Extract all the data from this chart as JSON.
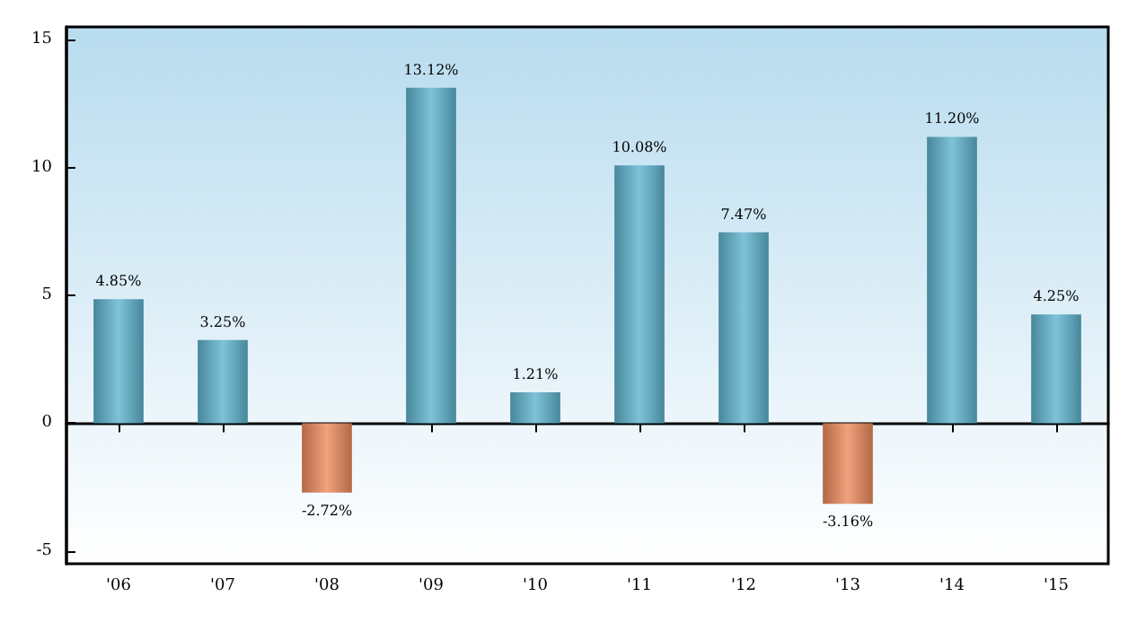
{
  "chart_data": {
    "type": "bar",
    "categories": [
      "'06",
      "'07",
      "'08",
      "'09",
      "'10",
      "'11",
      "'12",
      "'13",
      "'14",
      "'15"
    ],
    "values": [
      4.85,
      3.25,
      -2.72,
      13.12,
      1.21,
      10.08,
      7.47,
      -3.16,
      11.2,
      4.25
    ],
    "value_labels": [
      "4.85%",
      "3.25%",
      "-2.72%",
      "13.12%",
      "1.21%",
      "10.08%",
      "7.47%",
      "-3.16%",
      "11.20%",
      "4.25%"
    ],
    "colors": [
      "#5fb4cf",
      "#5fb4cf",
      "#ee8a5c",
      "#5fb4cf",
      "#5fb4cf",
      "#5fb4cf",
      "#5fb4cf",
      "#ee8a5c",
      "#5fb4cf",
      "#5fb4cf"
    ],
    "ylim": [
      -5.5,
      15.5
    ],
    "yticks": [
      -5,
      0,
      5,
      10,
      15
    ]
  }
}
